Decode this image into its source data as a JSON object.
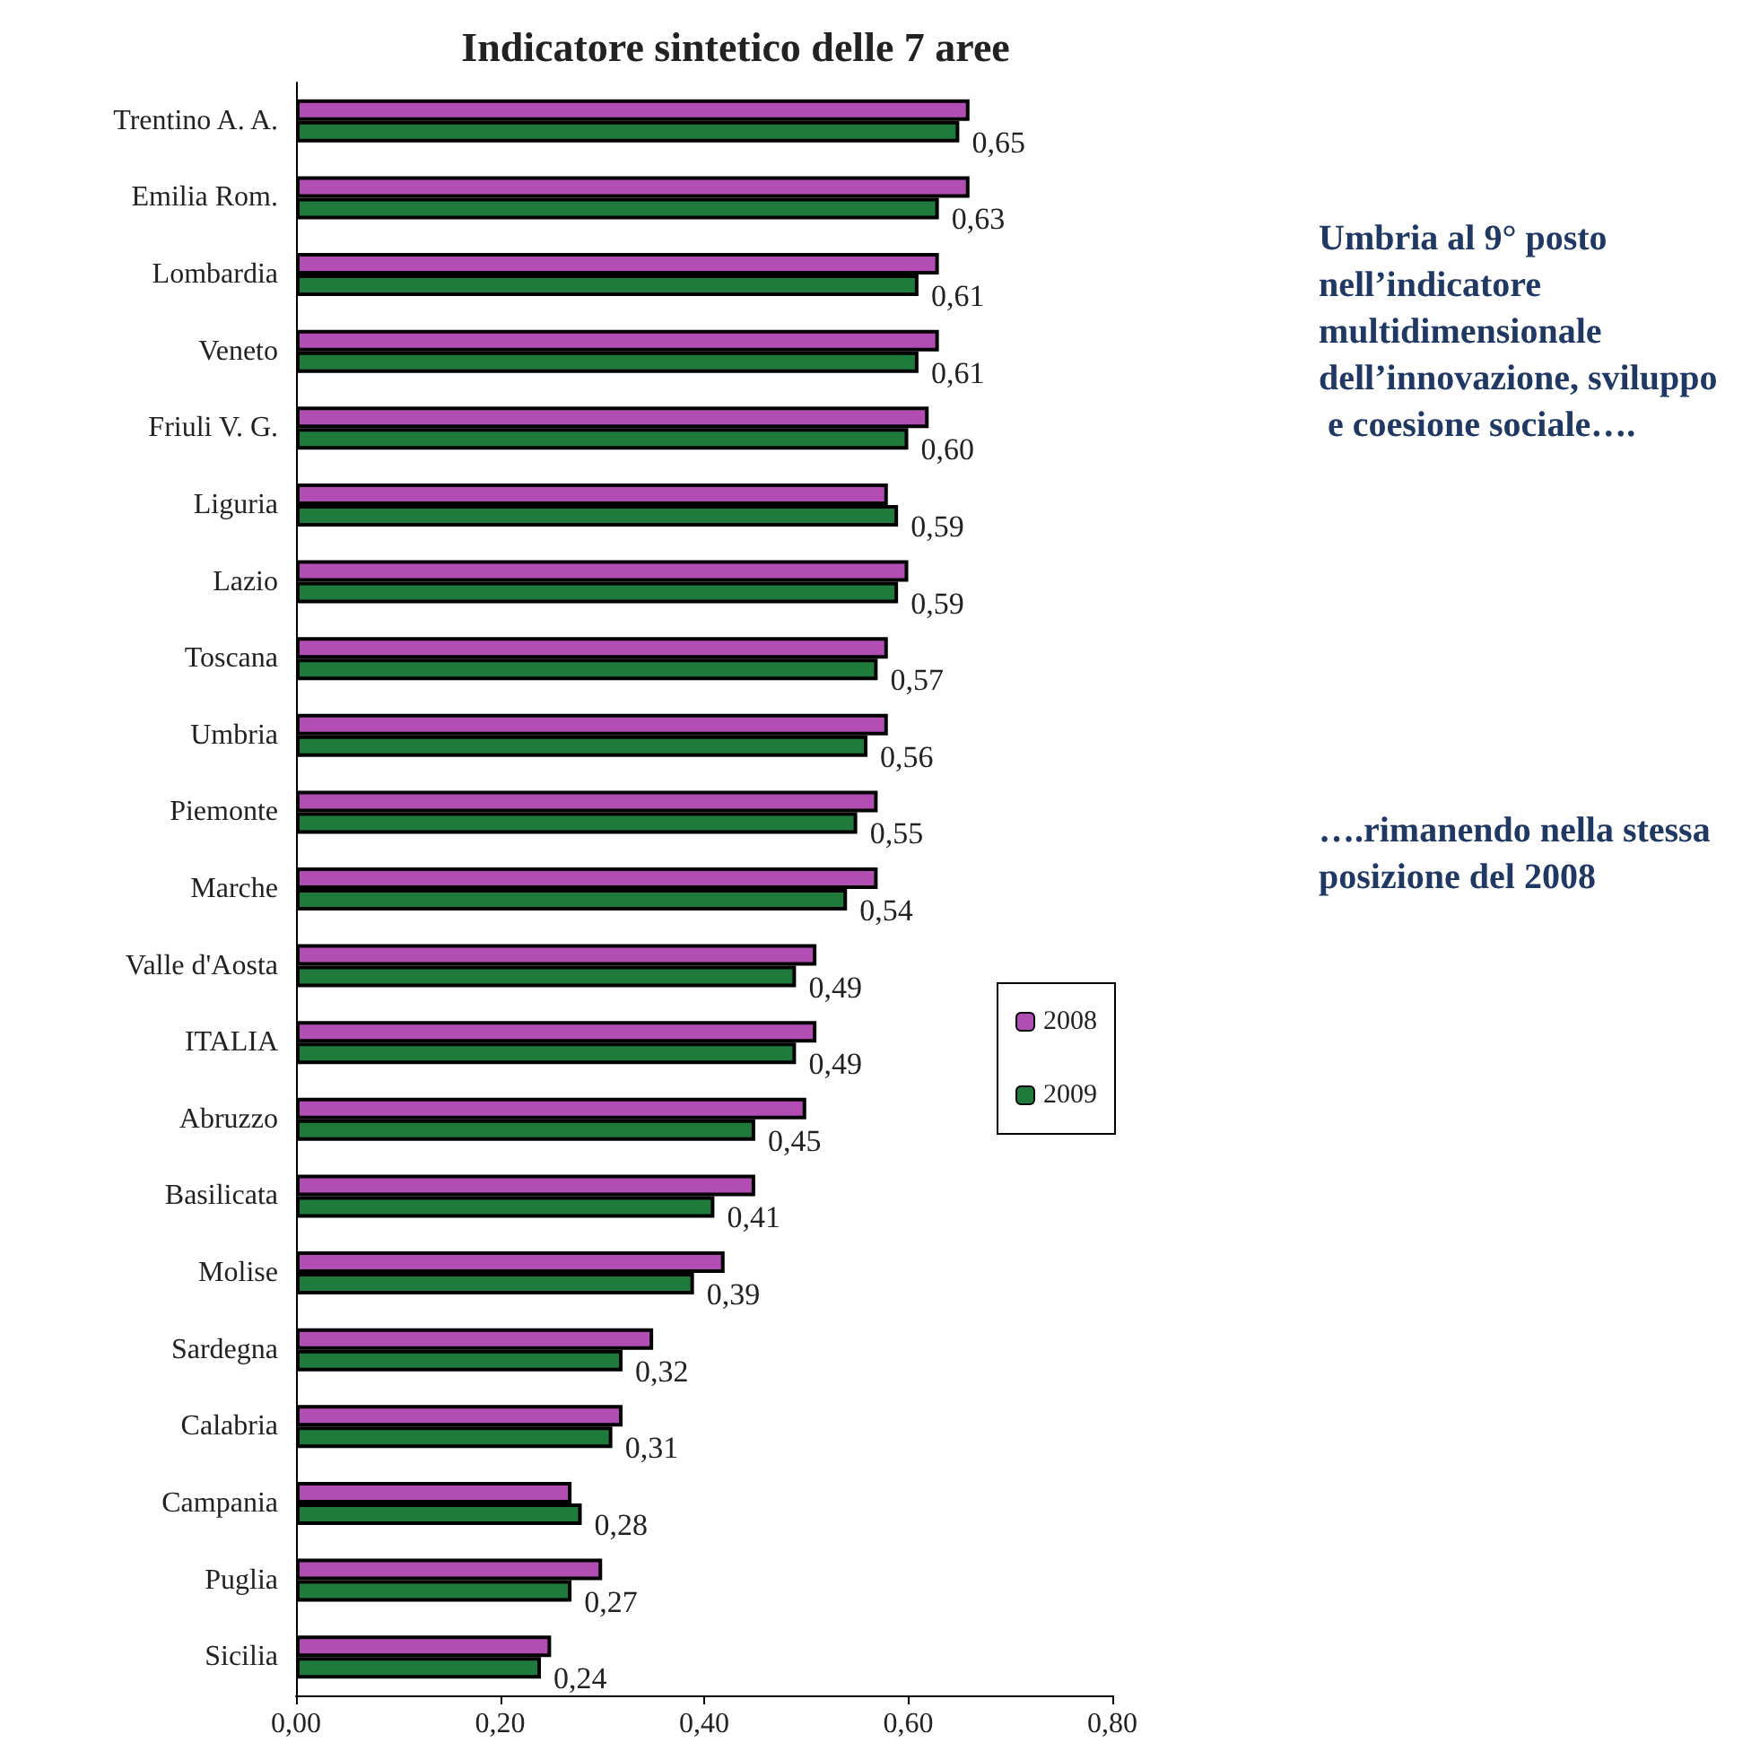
{
  "chart_data": {
    "type": "bar",
    "orientation": "horizontal",
    "title": "Indicatore sintetico delle 7 aree",
    "categories": [
      "Trentino A. A.",
      "Emilia Rom.",
      "Lombardia",
      "Veneto",
      "Friuli V. G.",
      "Liguria",
      "Lazio",
      "Toscana",
      "Umbria",
      "Piemonte",
      "Marche",
      "Valle d'Aosta",
      "ITALIA",
      "Abruzzo",
      "Basilicata",
      "Molise",
      "Sardegna",
      "Calabria",
      "Campania",
      "Puglia",
      "Sicilia"
    ],
    "series": [
      {
        "name": "2008",
        "color": "#b24db3",
        "values": [
          0.66,
          0.66,
          0.63,
          0.63,
          0.62,
          0.58,
          0.6,
          0.58,
          0.58,
          0.57,
          0.57,
          0.51,
          0.51,
          0.5,
          0.45,
          0.42,
          0.35,
          0.32,
          0.27,
          0.3,
          0.25
        ]
      },
      {
        "name": "2009",
        "color": "#1e7b3c",
        "values": [
          0.65,
          0.63,
          0.61,
          0.61,
          0.6,
          0.59,
          0.59,
          0.57,
          0.56,
          0.55,
          0.54,
          0.49,
          0.49,
          0.45,
          0.41,
          0.39,
          0.32,
          0.31,
          0.28,
          0.27,
          0.24
        ],
        "value_labels": [
          "0,65",
          "0,63",
          "0,61",
          "0,61",
          "0,60",
          "0,59",
          "0,59",
          "0,57",
          "0,56",
          "0,55",
          "0,54",
          "0,49",
          "0,49",
          "0,45",
          "0,41",
          "0,39",
          "0,32",
          "0,31",
          "0,28",
          "0,27",
          "0,24"
        ]
      }
    ],
    "xlim": [
      0,
      0.8
    ],
    "xticks": [
      {
        "value": 0,
        "label": "0,00"
      },
      {
        "value": 0.2,
        "label": "0,20"
      },
      {
        "value": 0.4,
        "label": "0,40"
      },
      {
        "value": 0.6,
        "label": "0,60"
      },
      {
        "value": 0.8,
        "label": "0,80"
      }
    ],
    "grid": false,
    "legend": "right",
    "annotations": [
      "Umbria al 9° posto nell’indicatore multidimensionale dell’innovazione, sviluppo e coesione sociale….",
      "….rimanendo nella stessa posizione del 2008"
    ]
  }
}
